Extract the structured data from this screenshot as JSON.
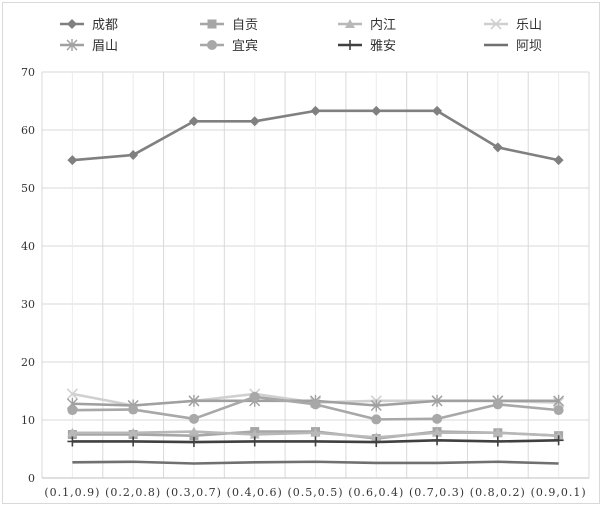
{
  "chart_data": {
    "type": "line",
    "title": "",
    "xlabel": "",
    "ylabel": "",
    "categories": [
      "(0.1,0.9)",
      "(0.2,0.8)",
      "(0.3,0.7)",
      "(0.4,0.6)",
      "(0.5,0.5)",
      "(0.6,0.4)",
      "(0.7,0.3)",
      "(0.8,0.2)",
      "(0.9,0.1)"
    ],
    "ylim": [
      0,
      70
    ],
    "yticks": [
      0,
      10,
      20,
      30,
      40,
      50,
      60,
      70
    ],
    "grid": true,
    "legend_position": "top",
    "series": [
      {
        "name": "成都",
        "marker": "diamond",
        "color": "#808080",
        "values": [
          54.8,
          55.7,
          61.5,
          61.5,
          63.3,
          63.3,
          63.3,
          57.0,
          54.8
        ]
      },
      {
        "name": "自贡",
        "marker": "square",
        "color": "#a6a6a6",
        "values": [
          7.5,
          7.5,
          7.3,
          8.0,
          8.0,
          6.8,
          8.0,
          7.8,
          7.3
        ]
      },
      {
        "name": "内江",
        "marker": "triangle",
        "color": "#b8b8b8",
        "values": [
          7.8,
          7.8,
          8.0,
          7.5,
          7.8,
          7.0,
          7.8,
          7.8,
          7.3
        ]
      },
      {
        "name": "乐山",
        "marker": "x",
        "color": "#d0d0d0",
        "values": [
          14.5,
          12.5,
          13.3,
          14.5,
          13.0,
          13.3,
          13.3,
          13.3,
          13.0
        ]
      },
      {
        "name": "眉山",
        "marker": "star",
        "color": "#a0a0a0",
        "values": [
          12.8,
          12.5,
          13.3,
          13.3,
          13.3,
          12.5,
          13.3,
          13.3,
          13.3
        ]
      },
      {
        "name": "宜宾",
        "marker": "circle",
        "color": "#a8a8a8",
        "values": [
          11.7,
          11.8,
          10.2,
          14.0,
          12.7,
          10.1,
          10.2,
          12.7,
          11.7
        ]
      },
      {
        "name": "雅安",
        "marker": "plus",
        "color": "#404040",
        "values": [
          6.3,
          6.3,
          6.2,
          6.3,
          6.3,
          6.2,
          6.5,
          6.3,
          6.5
        ]
      },
      {
        "name": "阿坝",
        "marker": "none",
        "color": "#707070",
        "values": [
          2.7,
          2.8,
          2.5,
          2.7,
          2.8,
          2.6,
          2.6,
          2.8,
          2.5
        ]
      }
    ]
  }
}
